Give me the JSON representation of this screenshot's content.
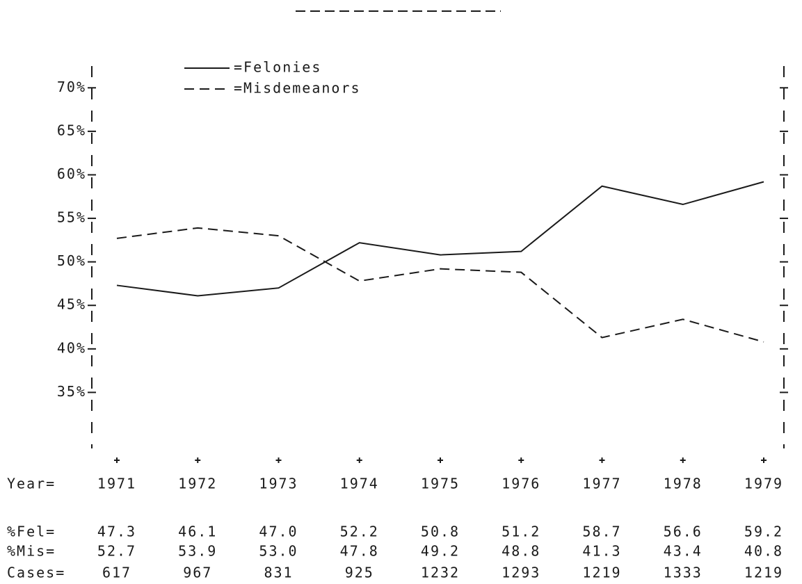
{
  "chart_data": {
    "type": "line",
    "categories": [
      "1971",
      "1972",
      "1973",
      "1974",
      "1975",
      "1976",
      "1977",
      "1978",
      "1979"
    ],
    "series": [
      {
        "name": "=Felonies",
        "color": "#111111",
        "dash": false,
        "values": [
          47.3,
          46.1,
          47.0,
          52.2,
          50.8,
          51.2,
          58.7,
          56.6,
          59.2
        ],
        "value_labels": [
          "47.3",
          "46.1",
          "47.0",
          "52.2",
          "50.8",
          "51.2",
          "58.7",
          "56.6",
          "59.2"
        ],
        "row_label": "%Fel="
      },
      {
        "name": "=Misdemeanors",
        "color": "#111111",
        "dash": true,
        "values": [
          52.7,
          53.9,
          53.0,
          47.8,
          49.2,
          48.8,
          41.3,
          43.4,
          40.8
        ],
        "value_labels": [
          "52.7",
          "53.9",
          "53.0",
          "47.8",
          "49.2",
          "48.8",
          "41.3",
          "43.4",
          "40.8"
        ],
        "row_label": "%Mis="
      }
    ],
    "category_label": "Year=",
    "cases": {
      "label": "Cases=",
      "values": [
        617,
        967,
        831,
        925,
        1232,
        1293,
        1219,
        1333,
        1219
      ]
    },
    "ylim": [
      30,
      72.5
    ],
    "yticks": [
      {
        "value": 35,
        "label": "35%"
      },
      {
        "value": 40,
        "label": "40%"
      },
      {
        "value": 45,
        "label": "45%"
      },
      {
        "value": 50,
        "label": "50%"
      },
      {
        "value": 55,
        "label": "55%"
      },
      {
        "value": 60,
        "label": "60%"
      },
      {
        "value": 65,
        "label": "65%"
      },
      {
        "value": 70,
        "label": "70%"
      }
    ]
  }
}
